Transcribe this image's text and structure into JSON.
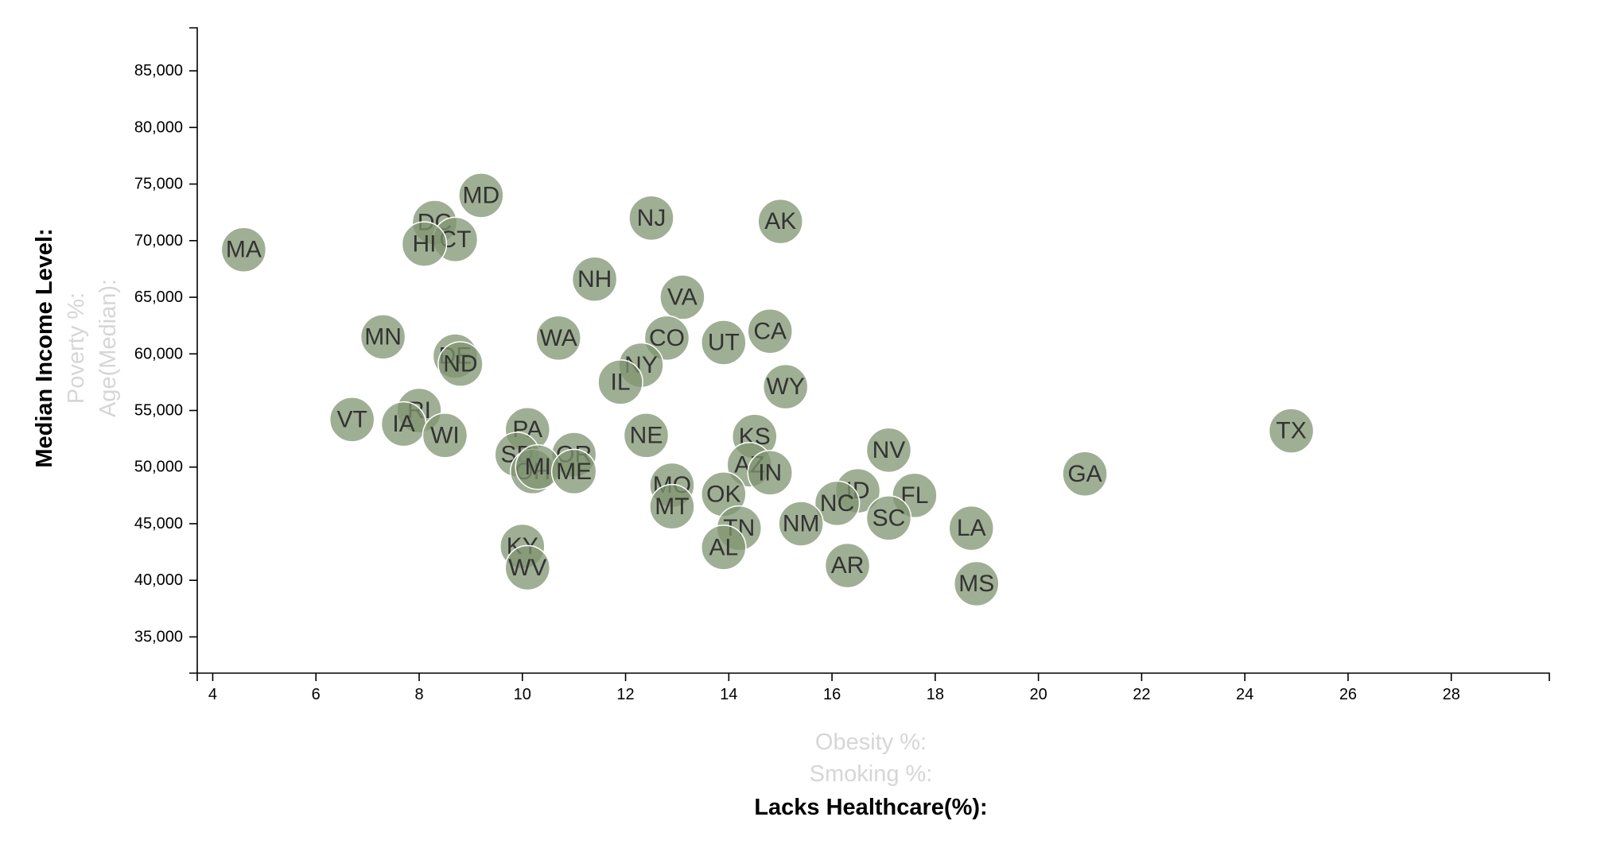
{
  "chart_data": {
    "type": "scatter",
    "x_axis": {
      "active_label": "Lacks Healthcare(%):",
      "inactive_labels": [
        "Obesity %:",
        "Smoking %:"
      ],
      "ticks": [
        4,
        6,
        8,
        10,
        12,
        14,
        16,
        18,
        20,
        22,
        24,
        26,
        28
      ],
      "tick_labels": [
        "4",
        "6",
        "8",
        "10",
        "12",
        "14",
        "16",
        "18",
        "20",
        "22",
        "24",
        "26",
        "28"
      ],
      "range": [
        3.7,
        29.9
      ]
    },
    "y_axis": {
      "active_label": "Median Income Level:",
      "inactive_labels": [
        "Poverty %:",
        "Age(Median):"
      ],
      "ticks": [
        35000,
        40000,
        45000,
        50000,
        55000,
        60000,
        65000,
        70000,
        75000,
        80000,
        85000
      ],
      "tick_labels": [
        "35,000",
        "40,000",
        "45,000",
        "50,000",
        "55,000",
        "60,000",
        "65,000",
        "70,000",
        "75,000",
        "80,000",
        "85,000"
      ],
      "range": [
        31800,
        88800
      ]
    },
    "points": [
      {
        "abbr": "MA",
        "x": 4.6,
        "y": 69200
      },
      {
        "abbr": "MD",
        "x": 9.2,
        "y": 74000
      },
      {
        "abbr": "DC",
        "x": 8.3,
        "y": 71600
      },
      {
        "abbr": "CT",
        "x": 8.7,
        "y": 70100
      },
      {
        "abbr": "HI",
        "x": 8.1,
        "y": 69700
      },
      {
        "abbr": "NJ",
        "x": 12.5,
        "y": 72000
      },
      {
        "abbr": "AK",
        "x": 15.0,
        "y": 71700
      },
      {
        "abbr": "NH",
        "x": 11.4,
        "y": 66600
      },
      {
        "abbr": "VA",
        "x": 13.1,
        "y": 65000
      },
      {
        "abbr": "MN",
        "x": 7.3,
        "y": 61500
      },
      {
        "abbr": "WA",
        "x": 10.7,
        "y": 61400
      },
      {
        "abbr": "CO",
        "x": 12.8,
        "y": 61400
      },
      {
        "abbr": "UT",
        "x": 13.9,
        "y": 61000
      },
      {
        "abbr": "CA",
        "x": 14.8,
        "y": 62000
      },
      {
        "abbr": "DE",
        "x": 8.7,
        "y": 59800
      },
      {
        "abbr": "ND",
        "x": 8.8,
        "y": 59100
      },
      {
        "abbr": "NY",
        "x": 12.3,
        "y": 59000
      },
      {
        "abbr": "IL",
        "x": 11.9,
        "y": 57500
      },
      {
        "abbr": "WY",
        "x": 15.1,
        "y": 57100
      },
      {
        "abbr": "VT",
        "x": 6.7,
        "y": 54200
      },
      {
        "abbr": "RI",
        "x": 8.0,
        "y": 55000
      },
      {
        "abbr": "IA",
        "x": 7.7,
        "y": 53800
      },
      {
        "abbr": "WI",
        "x": 8.5,
        "y": 52800
      },
      {
        "abbr": "PA",
        "x": 10.1,
        "y": 53300
      },
      {
        "abbr": "NE",
        "x": 12.4,
        "y": 52800
      },
      {
        "abbr": "KS",
        "x": 14.5,
        "y": 52700
      },
      {
        "abbr": "TX",
        "x": 24.9,
        "y": 53200
      },
      {
        "abbr": "SD",
        "x": 9.9,
        "y": 51100
      },
      {
        "abbr": "OR",
        "x": 11.0,
        "y": 51100
      },
      {
        "abbr": "OH",
        "x": 10.2,
        "y": 49600
      },
      {
        "abbr": "MI",
        "x": 10.3,
        "y": 50000
      },
      {
        "abbr": "ME",
        "x": 11.0,
        "y": 49600
      },
      {
        "abbr": "AZ",
        "x": 14.4,
        "y": 50200
      },
      {
        "abbr": "IN",
        "x": 14.8,
        "y": 49500
      },
      {
        "abbr": "NV",
        "x": 17.1,
        "y": 51500
      },
      {
        "abbr": "GA",
        "x": 20.9,
        "y": 49400
      },
      {
        "abbr": "MO",
        "x": 12.9,
        "y": 48400
      },
      {
        "abbr": "OK",
        "x": 13.9,
        "y": 47600
      },
      {
        "abbr": "ID",
        "x": 16.5,
        "y": 47900
      },
      {
        "abbr": "FL",
        "x": 17.6,
        "y": 47500
      },
      {
        "abbr": "NC",
        "x": 16.1,
        "y": 46800
      },
      {
        "abbr": "MT",
        "x": 12.9,
        "y": 46500
      },
      {
        "abbr": "SC",
        "x": 17.1,
        "y": 45500
      },
      {
        "abbr": "NM",
        "x": 15.4,
        "y": 45000
      },
      {
        "abbr": "TN",
        "x": 14.2,
        "y": 44600
      },
      {
        "abbr": "LA",
        "x": 18.7,
        "y": 44600
      },
      {
        "abbr": "AL",
        "x": 13.9,
        "y": 42900
      },
      {
        "abbr": "KY",
        "x": 10.0,
        "y": 43000
      },
      {
        "abbr": "WV",
        "x": 10.1,
        "y": 41100
      },
      {
        "abbr": "AR",
        "x": 16.3,
        "y": 41300
      },
      {
        "abbr": "MS",
        "x": 18.8,
        "y": 39700
      }
    ],
    "colors": {
      "marker_fill": "#7f9470",
      "marker_label": "#333333",
      "inactive_axis_label": "#d6d6d6"
    }
  }
}
